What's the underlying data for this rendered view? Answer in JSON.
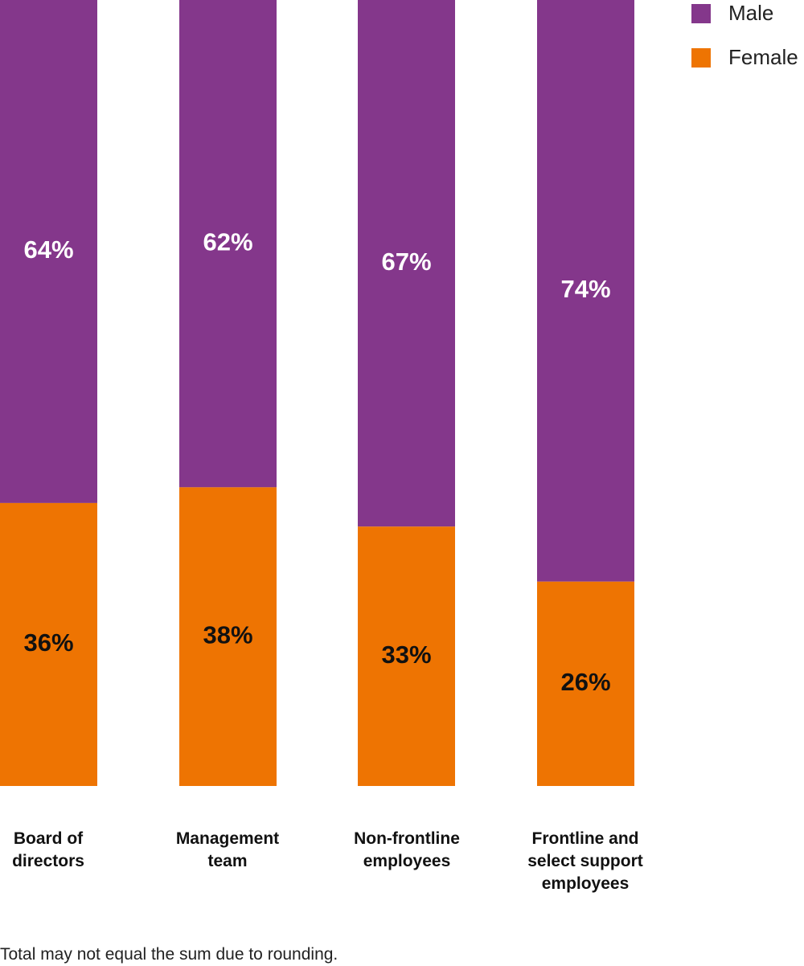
{
  "chart_data": {
    "type": "bar",
    "stacked": true,
    "categories": [
      "Board of directors",
      "Management team",
      "Non-frontline employees",
      "Frontline and select support employees"
    ],
    "series": [
      {
        "name": "Male",
        "values": [
          64,
          62,
          67,
          74
        ],
        "labels": [
          "64%",
          "62%",
          "67%",
          "74%"
        ]
      },
      {
        "name": "Female",
        "values": [
          36,
          38,
          33,
          26
        ],
        "labels": [
          "36%",
          "38%",
          "33%",
          "26%"
        ]
      }
    ],
    "ylim": [
      0,
      100
    ],
    "legend_position": "top-right",
    "footnote": "Total may not equal the sum due to rounding."
  },
  "category_lines": [
    [
      "Board of",
      "directors"
    ],
    [
      "Management",
      "team"
    ],
    [
      "Non-frontline",
      "employees"
    ],
    [
      "Frontline and",
      "select support",
      "employees"
    ]
  ],
  "colors": {
    "Male": "#84378b",
    "Female": "#ee7402",
    "male_label": "#ffffff",
    "female_label": "#111111"
  }
}
